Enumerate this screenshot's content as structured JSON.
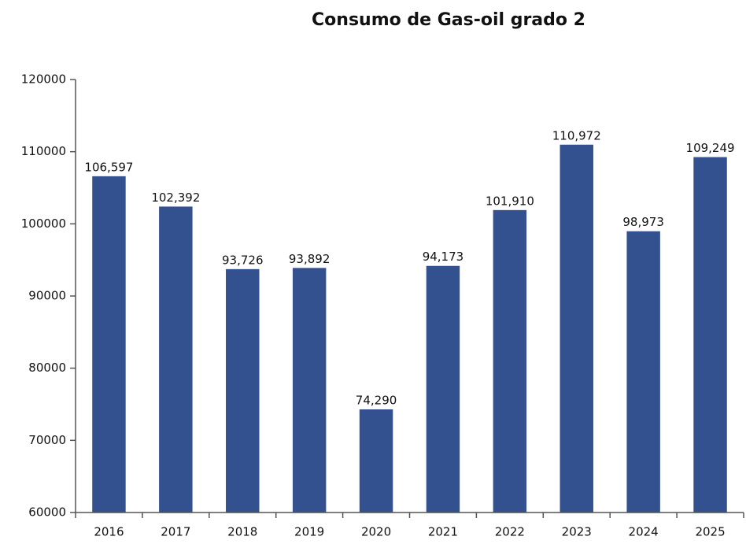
{
  "chart_data": {
    "type": "bar",
    "title": "Consumo de Gas-oil grado 2",
    "categories": [
      "2016",
      "2017",
      "2018",
      "2019",
      "2020",
      "2021",
      "2022",
      "2023",
      "2024",
      "2025"
    ],
    "values": [
      106597,
      102392,
      93726,
      93892,
      74290,
      94173,
      101910,
      110972,
      98973,
      109249
    ],
    "value_labels": [
      "106,597",
      "102,392",
      "93,726",
      "93,892",
      "74,290",
      "94,173",
      "101,910",
      "110,972",
      "98,973",
      "109,249"
    ],
    "color": "#33518f",
    "ylim": [
      60000,
      120000
    ],
    "yticks": [
      60000,
      70000,
      80000,
      90000,
      100000,
      110000,
      120000
    ],
    "grid": false
  }
}
